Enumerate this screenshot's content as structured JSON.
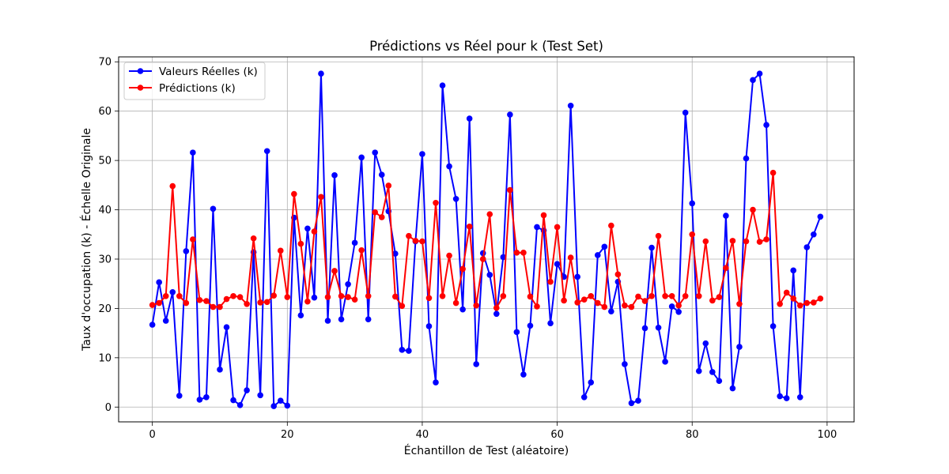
{
  "chart_data": {
    "type": "line",
    "title": "Prédictions vs Réel pour k (Test Set)",
    "xlabel": "Échantillon de Test (aléatoire)",
    "ylabel": "Taux d'occupation (k) - Échelle Originale",
    "xlim": [
      -5,
      104
    ],
    "ylim": [
      -3,
      71
    ],
    "xticks": [
      0,
      20,
      40,
      60,
      80,
      100
    ],
    "yticks": [
      0,
      10,
      20,
      30,
      40,
      50,
      60,
      70
    ],
    "xtick_labels": [
      "0",
      "20",
      "40",
      "60",
      "80",
      "100"
    ],
    "ytick_labels": [
      "0",
      "10",
      "20",
      "30",
      "40",
      "50",
      "60",
      "70"
    ],
    "grid": true,
    "legend_position": "upper-left",
    "x": [
      0,
      1,
      2,
      3,
      4,
      5,
      6,
      7,
      8,
      9,
      10,
      11,
      12,
      13,
      14,
      15,
      16,
      17,
      18,
      19,
      20,
      21,
      22,
      23,
      24,
      25,
      26,
      27,
      28,
      29,
      30,
      31,
      32,
      33,
      34,
      35,
      36,
      37,
      38,
      39,
      40,
      41,
      42,
      43,
      44,
      45,
      46,
      47,
      48,
      49,
      50,
      51,
      52,
      53,
      54,
      55,
      56,
      57,
      58,
      59,
      60,
      61,
      62,
      63,
      64,
      65,
      66,
      67,
      68,
      69,
      70,
      71,
      72,
      73,
      74,
      75,
      76,
      77,
      78,
      79,
      80,
      81,
      82,
      83,
      84,
      85,
      86,
      87,
      88,
      89,
      90,
      91,
      92,
      93,
      94,
      95,
      96,
      97,
      98,
      99
    ],
    "series": [
      {
        "name": "Valeurs Réelles (k)",
        "color": "#0000ff",
        "values": [
          16.7,
          25.3,
          17.5,
          23.3,
          2.3,
          31.6,
          51.6,
          1.5,
          2.0,
          40.2,
          7.6,
          16.2,
          1.4,
          0.4,
          3.4,
          31.4,
          2.4,
          51.9,
          0.2,
          1.3,
          0.3,
          38.4,
          18.6,
          36.2,
          22.2,
          67.6,
          17.5,
          47.0,
          17.8,
          24.9,
          33.3,
          50.6,
          17.8,
          51.6,
          47.1,
          39.7,
          31.1,
          11.6,
          11.4,
          33.6,
          51.3,
          16.4,
          5.0,
          65.2,
          48.8,
          42.2,
          19.8,
          58.5,
          8.7,
          31.2,
          26.8,
          18.9,
          30.4,
          59.3,
          15.2,
          6.6,
          16.5,
          36.5,
          35.8,
          17.0,
          29.0,
          26.4,
          61.1,
          26.4,
          2.0,
          5.0,
          30.8,
          32.5,
          19.4,
          25.4,
          8.7,
          0.8,
          1.3,
          16.0,
          32.3,
          16.1,
          9.2,
          20.4,
          19.3,
          59.7,
          41.3,
          7.3,
          12.9,
          7.1,
          5.3,
          38.8,
          3.8,
          12.2,
          50.4,
          66.3,
          67.6,
          57.2,
          16.4,
          2.2,
          1.8,
          27.7,
          2.0,
          32.4,
          35.0,
          38.6
        ]
      },
      {
        "name": "Prédictions (k)",
        "color": "#ff0000",
        "values": [
          20.7,
          21.1,
          22.5,
          44.8,
          22.5,
          21.1,
          34.0,
          21.7,
          21.5,
          20.3,
          20.3,
          21.9,
          22.5,
          22.3,
          20.9,
          34.2,
          21.2,
          21.3,
          22.6,
          31.7,
          22.3,
          43.2,
          33.1,
          21.4,
          35.6,
          42.6,
          22.3,
          27.6,
          22.5,
          22.3,
          21.8,
          31.8,
          22.5,
          39.5,
          38.5,
          44.9,
          22.4,
          20.5,
          34.7,
          33.7,
          33.6,
          22.1,
          41.4,
          22.5,
          30.7,
          21.1,
          28.0,
          36.6,
          20.6,
          30.0,
          39.1,
          20.1,
          22.5,
          44.0,
          31.3,
          31.3,
          22.4,
          20.4,
          38.9,
          25.4,
          36.5,
          21.6,
          30.3,
          21.2,
          21.8,
          22.5,
          21.1,
          20.3,
          36.8,
          26.9,
          20.6,
          20.3,
          22.4,
          21.5,
          22.5,
          34.7,
          22.5,
          22.5,
          20.6,
          22.5,
          35.0,
          22.5,
          33.6,
          21.6,
          22.3,
          28.2,
          33.7,
          20.9,
          33.6,
          40.0,
          33.5,
          34.0,
          47.5,
          20.9,
          23.2,
          22.0,
          20.6,
          21.1,
          21.2,
          22.0
        ]
      }
    ]
  }
}
